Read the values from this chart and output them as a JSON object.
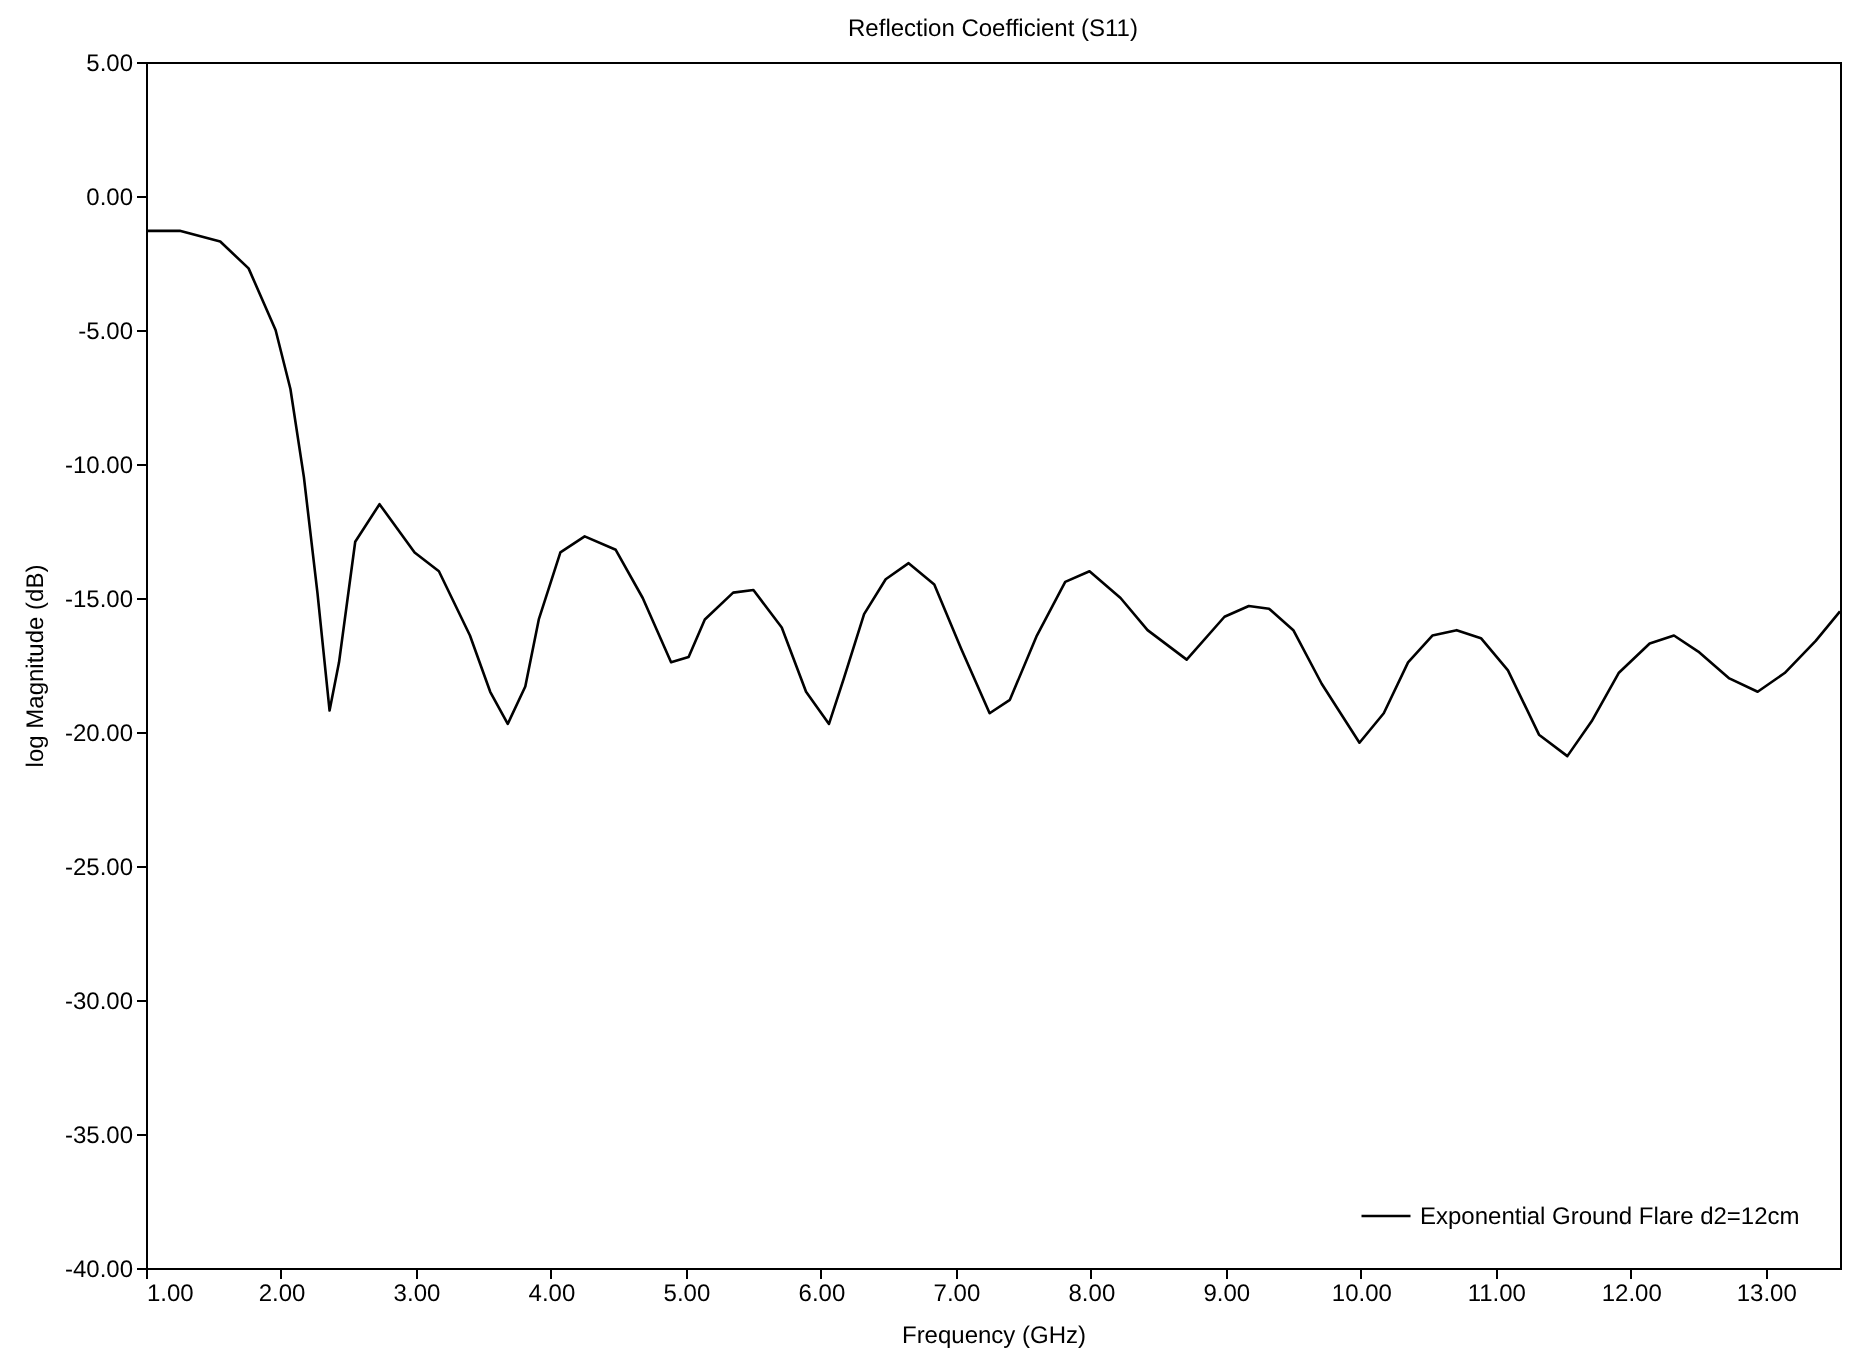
{
  "chart_data": {
    "type": "line",
    "title": "Reflection Coefficient (S11)",
    "xlabel": "Frequency (GHz)",
    "ylabel": "log Magnitude (dB)",
    "xlim": [
      1,
      13.55
    ],
    "ylim": [
      -40,
      5
    ],
    "xticks": [
      {
        "value": 1,
        "label": "1.00"
      },
      {
        "value": 2,
        "label": "2.00"
      },
      {
        "value": 3,
        "label": "3.00"
      },
      {
        "value": 4,
        "label": "4.00"
      },
      {
        "value": 5,
        "label": "5.00"
      },
      {
        "value": 6,
        "label": "6.00"
      },
      {
        "value": 7,
        "label": "7.00"
      },
      {
        "value": 8,
        "label": "8.00"
      },
      {
        "value": 9,
        "label": "9.00"
      },
      {
        "value": 10,
        "label": "10.00"
      },
      {
        "value": 11,
        "label": "11.00"
      },
      {
        "value": 12,
        "label": "12.00"
      },
      {
        "value": 13,
        "label": "13.00"
      }
    ],
    "yticks": [
      {
        "value": 5,
        "label": "5.00"
      },
      {
        "value": 0,
        "label": "0.00"
      },
      {
        "value": -5,
        "label": "-5.00"
      },
      {
        "value": -10,
        "label": "-10.00"
      },
      {
        "value": -15,
        "label": "-15.00"
      },
      {
        "value": -20,
        "label": "-20.00"
      },
      {
        "value": -25,
        "label": "-25.00"
      },
      {
        "value": -30,
        "label": "-30.00"
      },
      {
        "value": -35,
        "label": "-35.00"
      },
      {
        "value": -40,
        "label": "-40.00"
      }
    ],
    "grid": false,
    "legend": "bottom right",
    "marker": "none",
    "line_style": "solid",
    "series": [
      {
        "name": "Exponential Ground Flare d2=12cm",
        "color": "#000000",
        "x": [
          1.0,
          1.25,
          1.55,
          1.76,
          1.96,
          2.07,
          2.17,
          2.27,
          2.36,
          2.43,
          2.55,
          2.73,
          2.99,
          3.17,
          3.4,
          3.55,
          3.68,
          3.81,
          3.91,
          4.07,
          4.25,
          4.48,
          4.68,
          4.89,
          5.02,
          5.14,
          5.35,
          5.5,
          5.71,
          5.89,
          6.06,
          6.17,
          6.32,
          6.48,
          6.65,
          6.84,
          7.04,
          7.25,
          7.4,
          7.6,
          7.81,
          7.99,
          8.22,
          8.42,
          8.71,
          8.99,
          9.17,
          9.32,
          9.5,
          9.71,
          9.99,
          10.17,
          10.35,
          10.53,
          10.71,
          10.89,
          11.09,
          11.32,
          11.53,
          11.71,
          11.91,
          12.14,
          12.32,
          12.5,
          12.73,
          12.94,
          13.14,
          13.37,
          13.55
        ],
        "values": [
          -1.3,
          -1.3,
          -1.7,
          -2.7,
          -5.0,
          -7.2,
          -10.5,
          -14.8,
          -19.2,
          -17.4,
          -12.9,
          -11.5,
          -13.3,
          -14.0,
          -16.4,
          -18.5,
          -19.7,
          -18.3,
          -15.8,
          -13.3,
          -12.7,
          -13.2,
          -15.0,
          -17.4,
          -17.2,
          -15.8,
          -14.8,
          -14.7,
          -16.1,
          -18.5,
          -19.7,
          -18.0,
          -15.6,
          -14.3,
          -13.7,
          -14.5,
          -16.9,
          -19.3,
          -18.8,
          -16.4,
          -14.4,
          -14.0,
          -15.0,
          -16.2,
          -17.3,
          -15.7,
          -15.3,
          -15.4,
          -16.2,
          -18.2,
          -20.4,
          -19.3,
          -17.4,
          -16.4,
          -16.2,
          -16.5,
          -17.7,
          -20.1,
          -20.9,
          -19.6,
          -17.8,
          -16.7,
          -16.4,
          -17.0,
          -18.0,
          -18.5,
          -17.8,
          -16.6,
          -15.5
        ]
      }
    ]
  }
}
